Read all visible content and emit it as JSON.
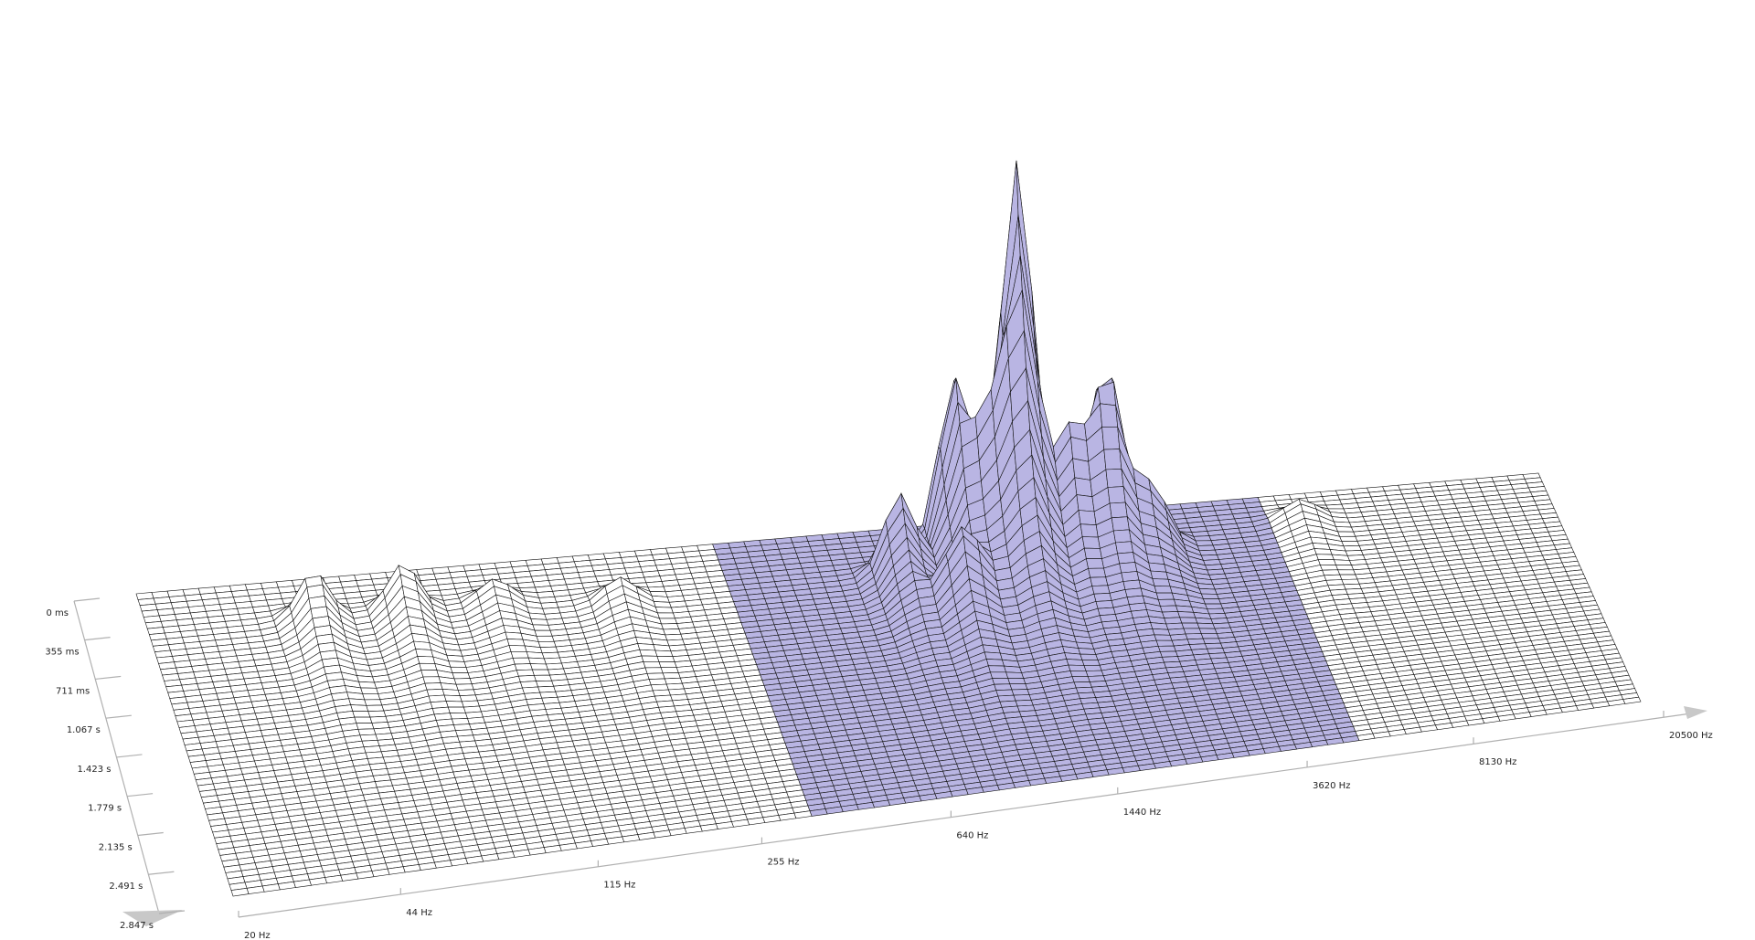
{
  "chart_data": {
    "type": "waterfall",
    "xlog": true,
    "xlim": [
      20,
      20500
    ],
    "xticks": [
      {
        "value": 20,
        "label": "20 Hz"
      },
      {
        "value": 44,
        "label": "44 Hz"
      },
      {
        "value": 115,
        "label": "115 Hz"
      },
      {
        "value": 255,
        "label": "255 Hz"
      },
      {
        "value": 640,
        "label": "640 Hz"
      },
      {
        "value": 1440,
        "label": "1440 Hz"
      },
      {
        "value": 3620,
        "label": "3620 Hz"
      },
      {
        "value": 8130,
        "label": "8130 Hz"
      },
      {
        "value": 20500,
        "label": "20500 Hz"
      }
    ],
    "tlim": [
      0,
      2.847
    ],
    "tticks": [
      {
        "value": 0,
        "label": "0 ms"
      },
      {
        "value": 0.355,
        "label": "355 ms"
      },
      {
        "value": 0.711,
        "label": "711 ms"
      },
      {
        "value": 1.067,
        "label": "1.067 s"
      },
      {
        "value": 1.423,
        "label": "1.423 s"
      },
      {
        "value": 1.779,
        "label": "1.779 s"
      },
      {
        "value": 2.135,
        "label": "2.135 s"
      },
      {
        "value": 2.491,
        "label": "2.491 s"
      },
      {
        "value": 2.847,
        "label": "2.847 s"
      }
    ],
    "highlight": [
      350,
      5000
    ],
    "highlight_color": "#b9b5e3",
    "surface_color": "#ffffff",
    "peaks": {
      "freq": [
        1500,
        1100,
        2300,
        1300,
        1900,
        800,
        2800,
        1000,
        45,
        70,
        110,
        200,
        6000
      ],
      "time": [
        0.2,
        0.25,
        0.3,
        0.4,
        0.4,
        0.5,
        0.45,
        0.9,
        0.4,
        0.4,
        0.4,
        0.5,
        0.3
      ],
      "level": [
        100,
        45,
        45,
        30,
        30,
        20,
        15,
        15,
        12,
        12,
        6,
        6,
        5
      ]
    }
  }
}
